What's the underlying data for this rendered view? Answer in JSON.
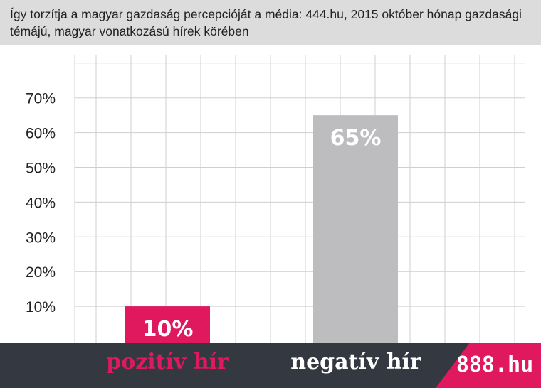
{
  "title": "Így torzítja a magyar gazdaság percepcióját a média: 444.hu, 2015 október hónap gazdasági témájú, magyar vonatkozású hírek körében",
  "brand": "888.hu",
  "colors": {
    "positive": "#e0185e",
    "negative": "#bdbdbf",
    "footer": "#343840",
    "title_bg": "#dcdcdc",
    "grid": "#cfcfcf"
  },
  "chart_data": {
    "type": "bar",
    "categories": [
      "pozitív hír",
      "negatív hír"
    ],
    "values": [
      10,
      65
    ],
    "data_labels": [
      "10%",
      "65%"
    ],
    "ytick_labels": [
      "10%",
      "20%",
      "30%",
      "40%",
      "50%",
      "60%",
      "70%"
    ],
    "ylim": [
      0,
      80
    ],
    "grid": true,
    "bar_colors": [
      "#e0185e",
      "#bdbdbf"
    ],
    "label_colors": [
      "#e0185e",
      "#ffffff"
    ]
  }
}
